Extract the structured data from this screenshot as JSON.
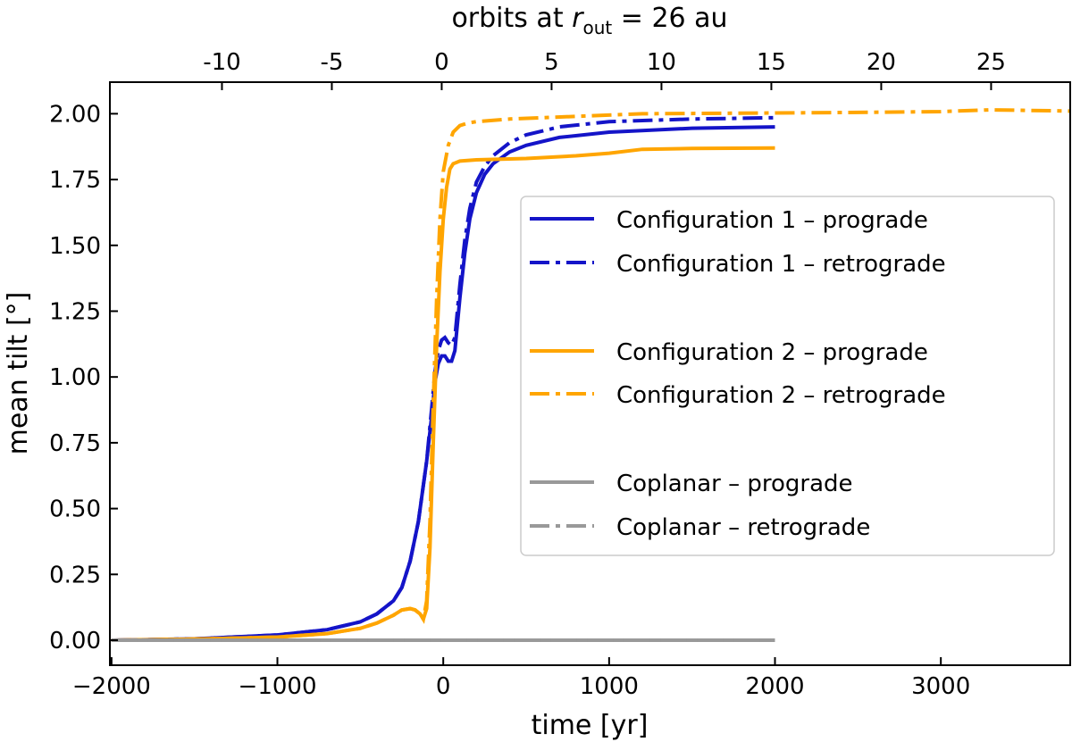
{
  "chart_data": {
    "type": "line",
    "xlabel": "time [yr]",
    "ylabel": "mean tilt [°]",
    "x2label_parts": [
      "orbits at ",
      "r",
      "out",
      " = 26 au"
    ],
    "xlim": [
      -2010,
      3780
    ],
    "xticks": [
      {
        "value": -2000,
        "label": "−2000"
      },
      {
        "value": -1000,
        "label": "−1000"
      },
      0,
      1000,
      2000,
      3000
    ],
    "x2lim": [
      -15.1,
      28.6
    ],
    "x2ticks": [
      -10,
      -5,
      0,
      5,
      10,
      15,
      20,
      25
    ],
    "ylim": [
      -0.095,
      2.12
    ],
    "yticks": [
      {
        "value": 0,
        "label": "0.00"
      },
      {
        "value": 0.25,
        "label": "0.25"
      },
      {
        "value": 0.5,
        "label": "0.50"
      },
      {
        "value": 0.75,
        "label": "0.75"
      },
      {
        "value": 1,
        "label": "1.00"
      },
      {
        "value": 1.25,
        "label": "1.25"
      },
      {
        "value": 1.5,
        "label": "1.50"
      },
      {
        "value": 1.75,
        "label": "1.75"
      },
      {
        "value": 2,
        "label": "2.00"
      }
    ],
    "series": [
      {
        "name": "Configuration 1 – prograde",
        "color": "#1414c8",
        "style": "solid",
        "x": [
          -2000,
          -1500,
          -1000,
          -700,
          -500,
          -400,
          -300,
          -250,
          -200,
          -150,
          -100,
          -70,
          -50,
          -30,
          -10,
          10,
          30,
          50,
          70,
          100,
          130,
          160,
          200,
          250,
          300,
          400,
          500,
          700,
          1000,
          1500,
          2000
        ],
        "values": [
          0,
          0.005,
          0.02,
          0.04,
          0.07,
          0.1,
          0.15,
          0.2,
          0.3,
          0.45,
          0.68,
          0.85,
          0.98,
          1.05,
          1.08,
          1.08,
          1.06,
          1.06,
          1.1,
          1.3,
          1.47,
          1.6,
          1.7,
          1.77,
          1.81,
          1.855,
          1.88,
          1.91,
          1.93,
          1.945,
          1.95
        ]
      },
      {
        "name": "Configuration 1 – retrograde",
        "color": "#1414c8",
        "style": "dashdot",
        "x": [
          -2000,
          -1500,
          -1000,
          -700,
          -500,
          -400,
          -300,
          -250,
          -200,
          -150,
          -100,
          -70,
          -50,
          -30,
          -10,
          10,
          30,
          50,
          70,
          100,
          130,
          160,
          200,
          250,
          300,
          400,
          500,
          700,
          1000,
          1500,
          2000
        ],
        "values": [
          0,
          0.005,
          0.02,
          0.04,
          0.07,
          0.1,
          0.15,
          0.2,
          0.3,
          0.45,
          0.68,
          0.88,
          1.02,
          1.1,
          1.14,
          1.15,
          1.13,
          1.12,
          1.15,
          1.35,
          1.52,
          1.64,
          1.74,
          1.8,
          1.84,
          1.89,
          1.92,
          1.95,
          1.97,
          1.98,
          1.985
        ]
      },
      {
        "name": "Configuration 2 – prograde",
        "color": "#ffa500",
        "style": "solid",
        "x": [
          -2000,
          -1500,
          -1000,
          -700,
          -500,
          -400,
          -300,
          -250,
          -200,
          -170,
          -140,
          -120,
          -100,
          -80,
          -60,
          -40,
          -20,
          0,
          20,
          40,
          60,
          100,
          200,
          500,
          800,
          1000,
          1200,
          1500,
          2000
        ],
        "values": [
          0,
          0.004,
          0.012,
          0.025,
          0.045,
          0.065,
          0.095,
          0.115,
          0.12,
          0.115,
          0.1,
          0.08,
          0.12,
          0.35,
          0.75,
          1.12,
          1.4,
          1.6,
          1.72,
          1.79,
          1.81,
          1.82,
          1.825,
          1.83,
          1.84,
          1.85,
          1.865,
          1.868,
          1.87
        ]
      },
      {
        "name": "Configuration 2 – retrograde",
        "color": "#ffa500",
        "style": "dashdot",
        "x": [
          -2000,
          -1500,
          -1000,
          -700,
          -500,
          -400,
          -300,
          -250,
          -200,
          -170,
          -140,
          -120,
          -100,
          -80,
          -60,
          -40,
          -20,
          0,
          30,
          60,
          100,
          150,
          200,
          400,
          800,
          1200,
          2000,
          2500,
          3000,
          3300,
          3780
        ],
        "values": [
          0,
          0.004,
          0.012,
          0.025,
          0.045,
          0.065,
          0.095,
          0.115,
          0.12,
          0.115,
          0.1,
          0.08,
          0.15,
          0.45,
          0.9,
          1.3,
          1.6,
          1.78,
          1.88,
          1.93,
          1.955,
          1.965,
          1.97,
          1.98,
          1.99,
          2.0,
          2.003,
          2.005,
          2.008,
          2.015,
          2.01
        ]
      },
      {
        "name": "Coplanar – prograde",
        "color": "#999999",
        "style": "solid",
        "x": [
          -2000,
          2000
        ],
        "values": [
          0,
          0
        ]
      },
      {
        "name": "Coplanar – retrograde",
        "color": "#999999",
        "style": "dashdot",
        "x": [
          -2000,
          2000
        ],
        "values": [
          0,
          0
        ]
      }
    ]
  }
}
